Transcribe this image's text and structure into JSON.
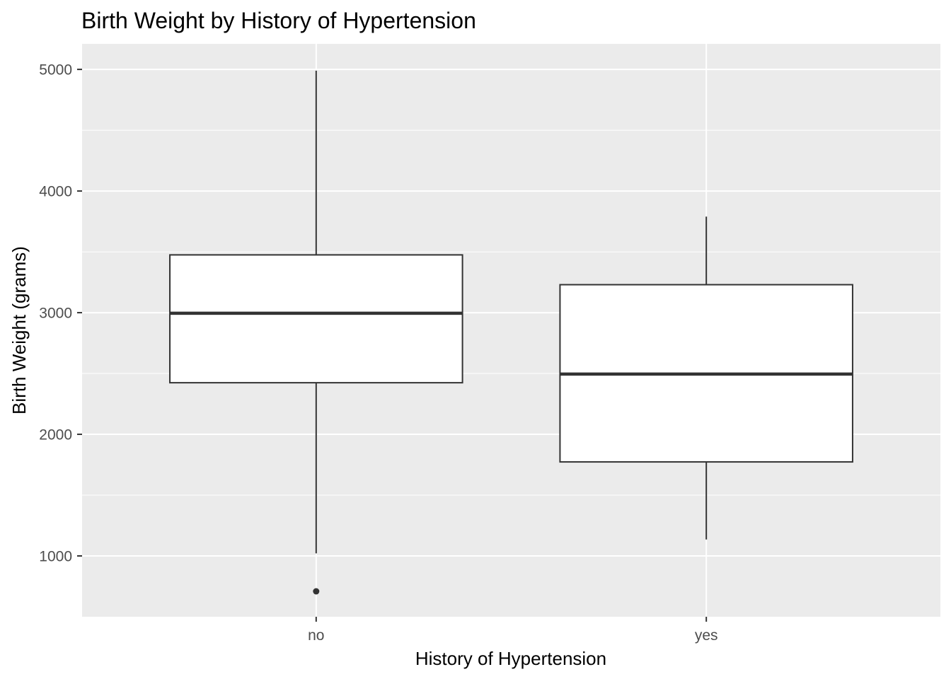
{
  "chart_data": {
    "type": "boxplot",
    "title": "Birth Weight by History of Hypertension",
    "xlabel": "History of Hypertension",
    "ylabel": "Birth Weight (grams)",
    "categories": [
      "no",
      "yes"
    ],
    "ylim": [
      500,
      5210
    ],
    "yticks": [
      1000,
      2000,
      3000,
      4000,
      5000
    ],
    "ytick_labels": [
      "1000",
      "2000",
      "3000",
      "4000",
      "5000"
    ],
    "grid": true,
    "boxes": [
      {
        "category": "no",
        "whisker_low": 1021,
        "q1": 2424,
        "median": 2995,
        "q3": 3475,
        "whisker_high": 4990,
        "outliers": [
          709
        ]
      },
      {
        "category": "yes",
        "whisker_low": 1135,
        "q1": 1773,
        "median": 2495,
        "q3": 3230,
        "whisker_high": 3790,
        "outliers": []
      }
    ],
    "colors": {
      "panel": "#ebebeb",
      "grid": "#ffffff",
      "box_fill": "#ffffff",
      "box_line": "#333333"
    }
  }
}
